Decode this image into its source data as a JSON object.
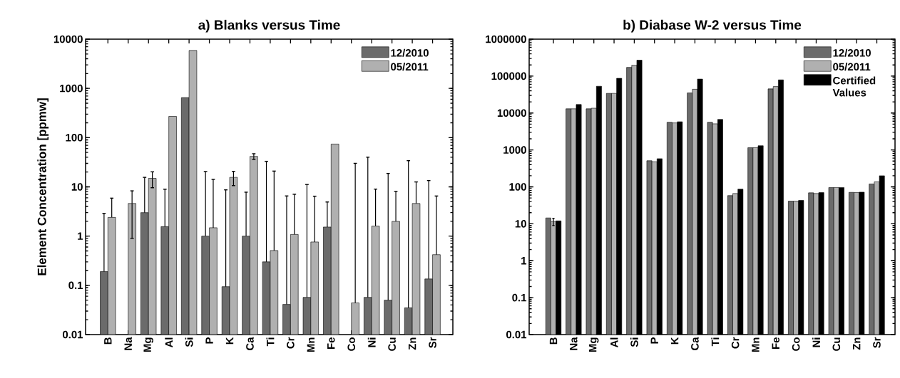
{
  "chart_data": [
    {
      "type": "bar",
      "title": "a) Blanks versus Time",
      "ylabel": "Element Concentration [ppmw]",
      "log": true,
      "legend": "top right",
      "categories": [
        "B",
        "Na",
        "Mg",
        "Al",
        "Si",
        "P",
        "K",
        "Ca",
        "Ti",
        "Cr",
        "Mn",
        "Fe",
        "Co",
        "Ni",
        "Cu",
        "Zn",
        "Sr"
      ],
      "ylim": [
        0.01,
        10000
      ],
      "yticks": [
        0.01,
        0.1,
        1,
        10,
        100,
        1000,
        10000
      ],
      "series": [
        {
          "name": "12/2010",
          "color": "#6b6b6b",
          "values": [
            0.19,
            null,
            3.0,
            1.56,
            650,
            1.0,
            0.094,
            1.0,
            0.3,
            0.041,
            0.057,
            1.53,
            null,
            0.057,
            0.05,
            0.035,
            0.135
          ],
          "errors": [
            2.7,
            null,
            12.6,
            7.4,
            null,
            19.5,
            8.6,
            6.8,
            32.7,
            6.5,
            11.1,
            3.4,
            null,
            40,
            18.7,
            34,
            13.3
          ]
        },
        {
          "name": "05/2011",
          "color": "#b0b0b0",
          "values": [
            2.4,
            4.6,
            14.9,
            270,
            5900,
            1.48,
            15.6,
            41.6,
            0.51,
            1.08,
            0.76,
            74,
            0.044,
            1.6,
            1.99,
            4.6,
            0.42
          ],
          "errors": [
            3.5,
            3.7,
            5.3,
            null,
            null,
            12.7,
            5.0,
            5.5,
            20.4,
            6.0,
            5.7,
            null,
            30,
            7.4,
            6.1,
            8.0,
            6.1
          ]
        }
      ]
    },
    {
      "type": "bar",
      "title": "b) Diabase W-2 versus Time",
      "log": true,
      "legend": "top right",
      "categories": [
        "B",
        "Na",
        "Mg",
        "Al",
        "Si",
        "P",
        "K",
        "Ca",
        "Ti",
        "Cr",
        "Mn",
        "Fe",
        "Co",
        "Ni",
        "Cu",
        "Zn",
        "Sr"
      ],
      "ylim": [
        0.01,
        1000000
      ],
      "yticks": [
        0.01,
        0.1,
        1,
        10,
        100,
        1000,
        10000,
        100000,
        1000000
      ],
      "series": [
        {
          "name": "12/2010",
          "color": "#6b6b6b",
          "values": [
            14.4,
            13000,
            13000,
            34000,
            172000,
            510,
            5600,
            35000,
            5600,
            58,
            1150,
            45000,
            41,
            69,
            96,
            71,
            120
          ]
        },
        {
          "name": "05/2011",
          "color": "#b0b0b0",
          "values": [
            11.5,
            13000,
            13500,
            34000,
            196000,
            480,
            5400,
            44000,
            5100,
            66,
            1150,
            52000,
            41,
            66,
            96,
            70,
            137
          ],
          "errors": [
            2.5,
            null,
            null,
            null,
            null,
            null,
            null,
            null,
            null,
            null,
            null,
            null,
            null,
            null,
            null,
            null,
            null
          ]
        },
        {
          "name": "Certified Values",
          "color": "#000000",
          "values": [
            12,
            17000,
            53000,
            87000,
            270000,
            580,
            5800,
            83000,
            6700,
            87,
            1300,
            79000,
            43,
            70,
            96,
            72,
            200
          ]
        }
      ]
    }
  ]
}
